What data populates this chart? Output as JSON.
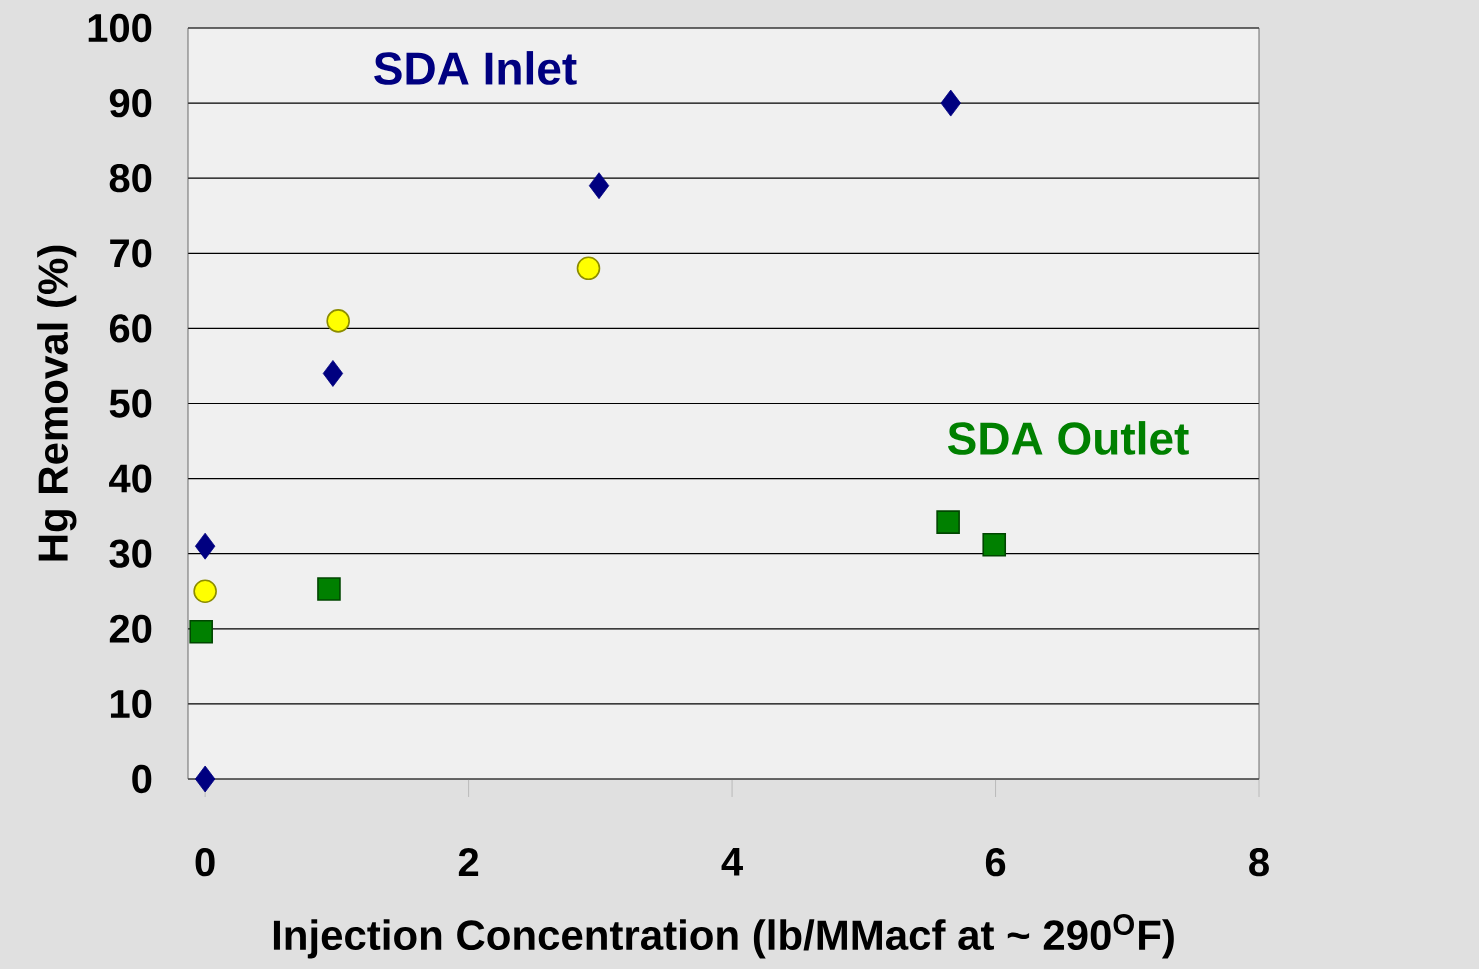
{
  "chart_data": {
    "type": "scatter",
    "xlabel": "Injection Concentration (lb/MMacf at ~ 290$^{O}$F)",
    "ylabel": "Hg Removal (%)",
    "annotations": [
      "SDA Inlet",
      "SDA Outlet"
    ],
    "series": [
      {
        "color": "#000080",
        "marker": "diamond",
        "x": [
          0,
          0,
          0.97,
          2.99,
          5.66
        ],
        "values": [
          0,
          31,
          54,
          79,
          90
        ]
      },
      {
        "color": "#ffff00",
        "marker": "circle",
        "x": [
          0,
          1.01,
          2.91
        ],
        "values": [
          25,
          61,
          68
        ]
      },
      {
        "color": "#008000",
        "marker": "square",
        "x": [
          -0.03,
          0.94,
          5.64,
          5.99
        ],
        "values": [
          19.6,
          25.3,
          34.2,
          31.2
        ]
      }
    ],
    "xlim": [
      -0.13,
      8
    ],
    "ylim": [
      0,
      100
    ],
    "xticks": [
      0,
      2,
      4,
      6,
      8
    ],
    "yticks": [
      0,
      10,
      20,
      30,
      40,
      50,
      60,
      70,
      80,
      90,
      100
    ],
    "grid": "y"
  }
}
